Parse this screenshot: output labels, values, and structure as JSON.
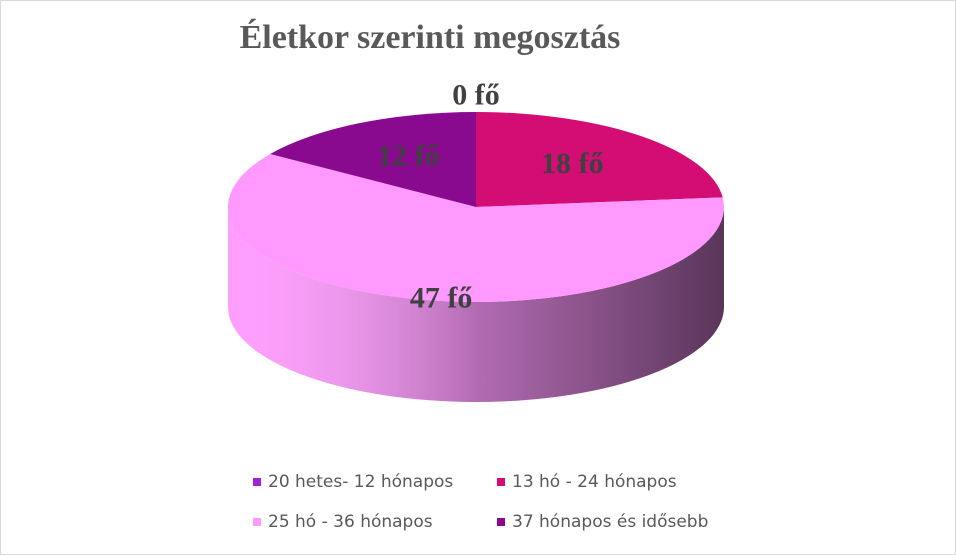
{
  "chart_data": {
    "type": "pie3d",
    "title": "Életkor szerinti megosztás",
    "categories": [
      "20 hetes- 12 hónapos",
      "13 hó - 24 hónapos",
      "25 hó - 36 hónapos",
      "37 hónapos és idősebb"
    ],
    "values": [
      0,
      18,
      47,
      12
    ],
    "value_labels": [
      "0 fő",
      "18 fő",
      "47 fő",
      "12 fő"
    ],
    "colors": [
      "#a61fd8",
      "#d30d74",
      "#ff99ff",
      "#8a0a8f"
    ],
    "legend": "bottom"
  }
}
